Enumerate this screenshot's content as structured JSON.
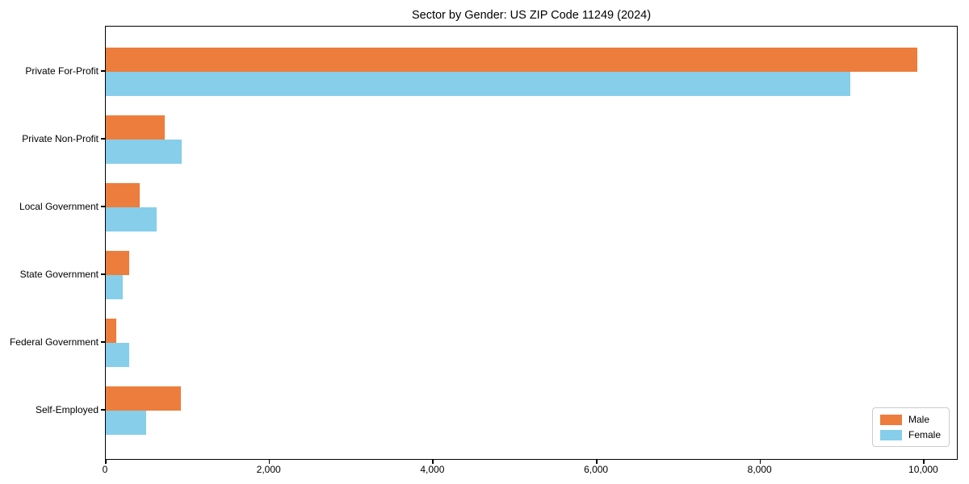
{
  "chart_data": {
    "type": "bar",
    "orientation": "horizontal",
    "title": "Sector by Gender: US ZIP Code 11249 (2024)",
    "categories": [
      "Private For-Profit",
      "Private Non-Profit",
      "Local Government",
      "State Government",
      "Federal Government",
      "Self-Employed"
    ],
    "series": [
      {
        "name": "Male",
        "color": "#ec7d3c",
        "values": [
          9920,
          720,
          410,
          290,
          130,
          920
        ]
      },
      {
        "name": "Female",
        "color": "#87ceeb",
        "values": [
          9100,
          930,
          620,
          205,
          290,
          490
        ]
      }
    ],
    "xlabel": "",
    "ylabel": "",
    "xlim": [
      0,
      10420
    ],
    "x_ticks": [
      0,
      2000,
      4000,
      6000,
      8000,
      10000
    ],
    "x_tick_labels": [
      "0",
      "2,000",
      "4,000",
      "6,000",
      "8,000",
      "10,000"
    ],
    "legend_position": "lower right",
    "grid": false
  }
}
